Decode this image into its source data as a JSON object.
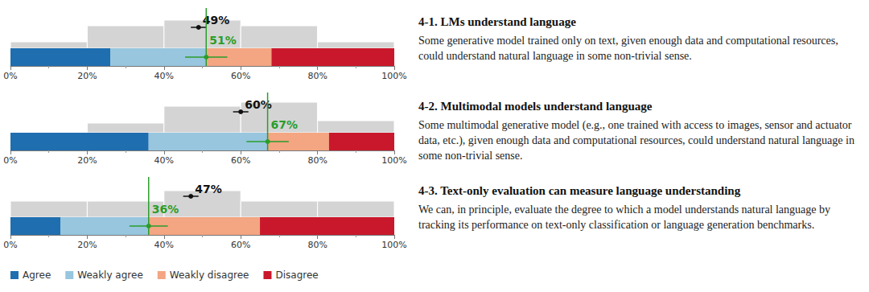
{
  "chart_data": [
    {
      "type": "bar",
      "orientation": "horizontal",
      "stacked": true,
      "title": "4-1. LMs understand language",
      "subtitle": "Some generative model trained only on text, given enough data and computational resources, could understand natural language in some non-trivial sense.",
      "categories": [
        null
      ],
      "series": [
        {
          "name": "Agree",
          "color": "#1f6eb0",
          "values": [
            26
          ]
        },
        {
          "name": "Weakly agree",
          "color": "#97c6de",
          "values": [
            25
          ]
        },
        {
          "name": "Weakly disagree",
          "color": "#f4a582",
          "values": [
            17
          ]
        },
        {
          "name": "Disagree",
          "color": "#c9182b",
          "values": [
            32
          ]
        }
      ],
      "xlim": [
        0,
        100
      ],
      "xticks": [
        {
          "value": 0,
          "label": "0%"
        },
        {
          "value": 20,
          "label": "20%"
        },
        {
          "value": 40,
          "label": "40%"
        },
        {
          "value": 60,
          "label": "60%"
        },
        {
          "value": 80,
          "label": "80%"
        },
        {
          "value": 100,
          "label": "100%"
        }
      ],
      "tick_labels": "x",
      "legend": "lower left",
      "prediction": {
        "value": 49,
        "error": 2,
        "label": "49%"
      },
      "result": {
        "value": 51,
        "error": 5.5,
        "label": "51%"
      },
      "prediction_histogram": {
        "bins": [
          0,
          20,
          40,
          60,
          80,
          100
        ],
        "counts": [
          8,
          28,
          35,
          28,
          8
        ]
      }
    },
    {
      "type": "bar",
      "orientation": "horizontal",
      "stacked": true,
      "title": "4-2. Multimodal models understand language",
      "subtitle": "Some multimodal generative model (e.g., one trained with access to images, sensor and actuator data, etc.), given enough data and computational resources, could understand natural language in some non-trivial sense.",
      "categories": [
        null
      ],
      "series": [
        {
          "name": "Agree",
          "color": "#1f6eb0",
          "values": [
            36
          ]
        },
        {
          "name": "Weakly agree",
          "color": "#97c6de",
          "values": [
            31
          ]
        },
        {
          "name": "Weakly disagree",
          "color": "#f4a582",
          "values": [
            16
          ]
        },
        {
          "name": "Disagree",
          "color": "#c9182b",
          "values": [
            17
          ]
        }
      ],
      "xlim": [
        0,
        100
      ],
      "xticks": [
        {
          "value": 0,
          "label": "0%"
        },
        {
          "value": 20,
          "label": "20%"
        },
        {
          "value": 40,
          "label": "40%"
        },
        {
          "value": 60,
          "label": "60%"
        },
        {
          "value": 80,
          "label": "80%"
        },
        {
          "value": 100,
          "label": "100%"
        }
      ],
      "tick_labels": "x",
      "prediction": {
        "value": 60,
        "error": 2,
        "label": "60%"
      },
      "result": {
        "value": 67,
        "error": 5.5,
        "label": "67%"
      },
      "prediction_histogram": {
        "bins": [
          0,
          20,
          40,
          60,
          80,
          100
        ],
        "counts": [
          0,
          12,
          33,
          38,
          15
        ]
      }
    },
    {
      "type": "bar",
      "orientation": "horizontal",
      "stacked": true,
      "title": "4-3. Text-only evaluation can measure language understanding",
      "subtitle": "We can, in principle, evaluate the degree to which a model understands natural language by tracking its performance on text-only classification or language generation benchmarks.",
      "categories": [
        null
      ],
      "series": [
        {
          "name": "Agree",
          "color": "#1f6eb0",
          "values": [
            13
          ]
        },
        {
          "name": "Weakly agree",
          "color": "#97c6de",
          "values": [
            23
          ]
        },
        {
          "name": "Weakly disagree",
          "color": "#f4a582",
          "values": [
            29
          ]
        },
        {
          "name": "Disagree",
          "color": "#c9182b",
          "values": [
            35
          ]
        }
      ],
      "xlim": [
        0,
        100
      ],
      "xticks": [
        {
          "value": 0,
          "label": "0%"
        },
        {
          "value": 20,
          "label": "20%"
        },
        {
          "value": 40,
          "label": "40%"
        },
        {
          "value": 60,
          "label": "60%"
        },
        {
          "value": 80,
          "label": "80%"
        },
        {
          "value": 100,
          "label": "100%"
        }
      ],
      "tick_labels": "x",
      "prediction": {
        "value": 47,
        "error": 2,
        "label": "47%"
      },
      "result": {
        "value": 36,
        "error": 5,
        "label": "36%"
      },
      "prediction_histogram": {
        "bins": [
          0,
          20,
          40,
          60,
          80,
          100
        ],
        "counts": [
          20,
          20,
          33,
          20,
          20
        ]
      }
    }
  ]
}
